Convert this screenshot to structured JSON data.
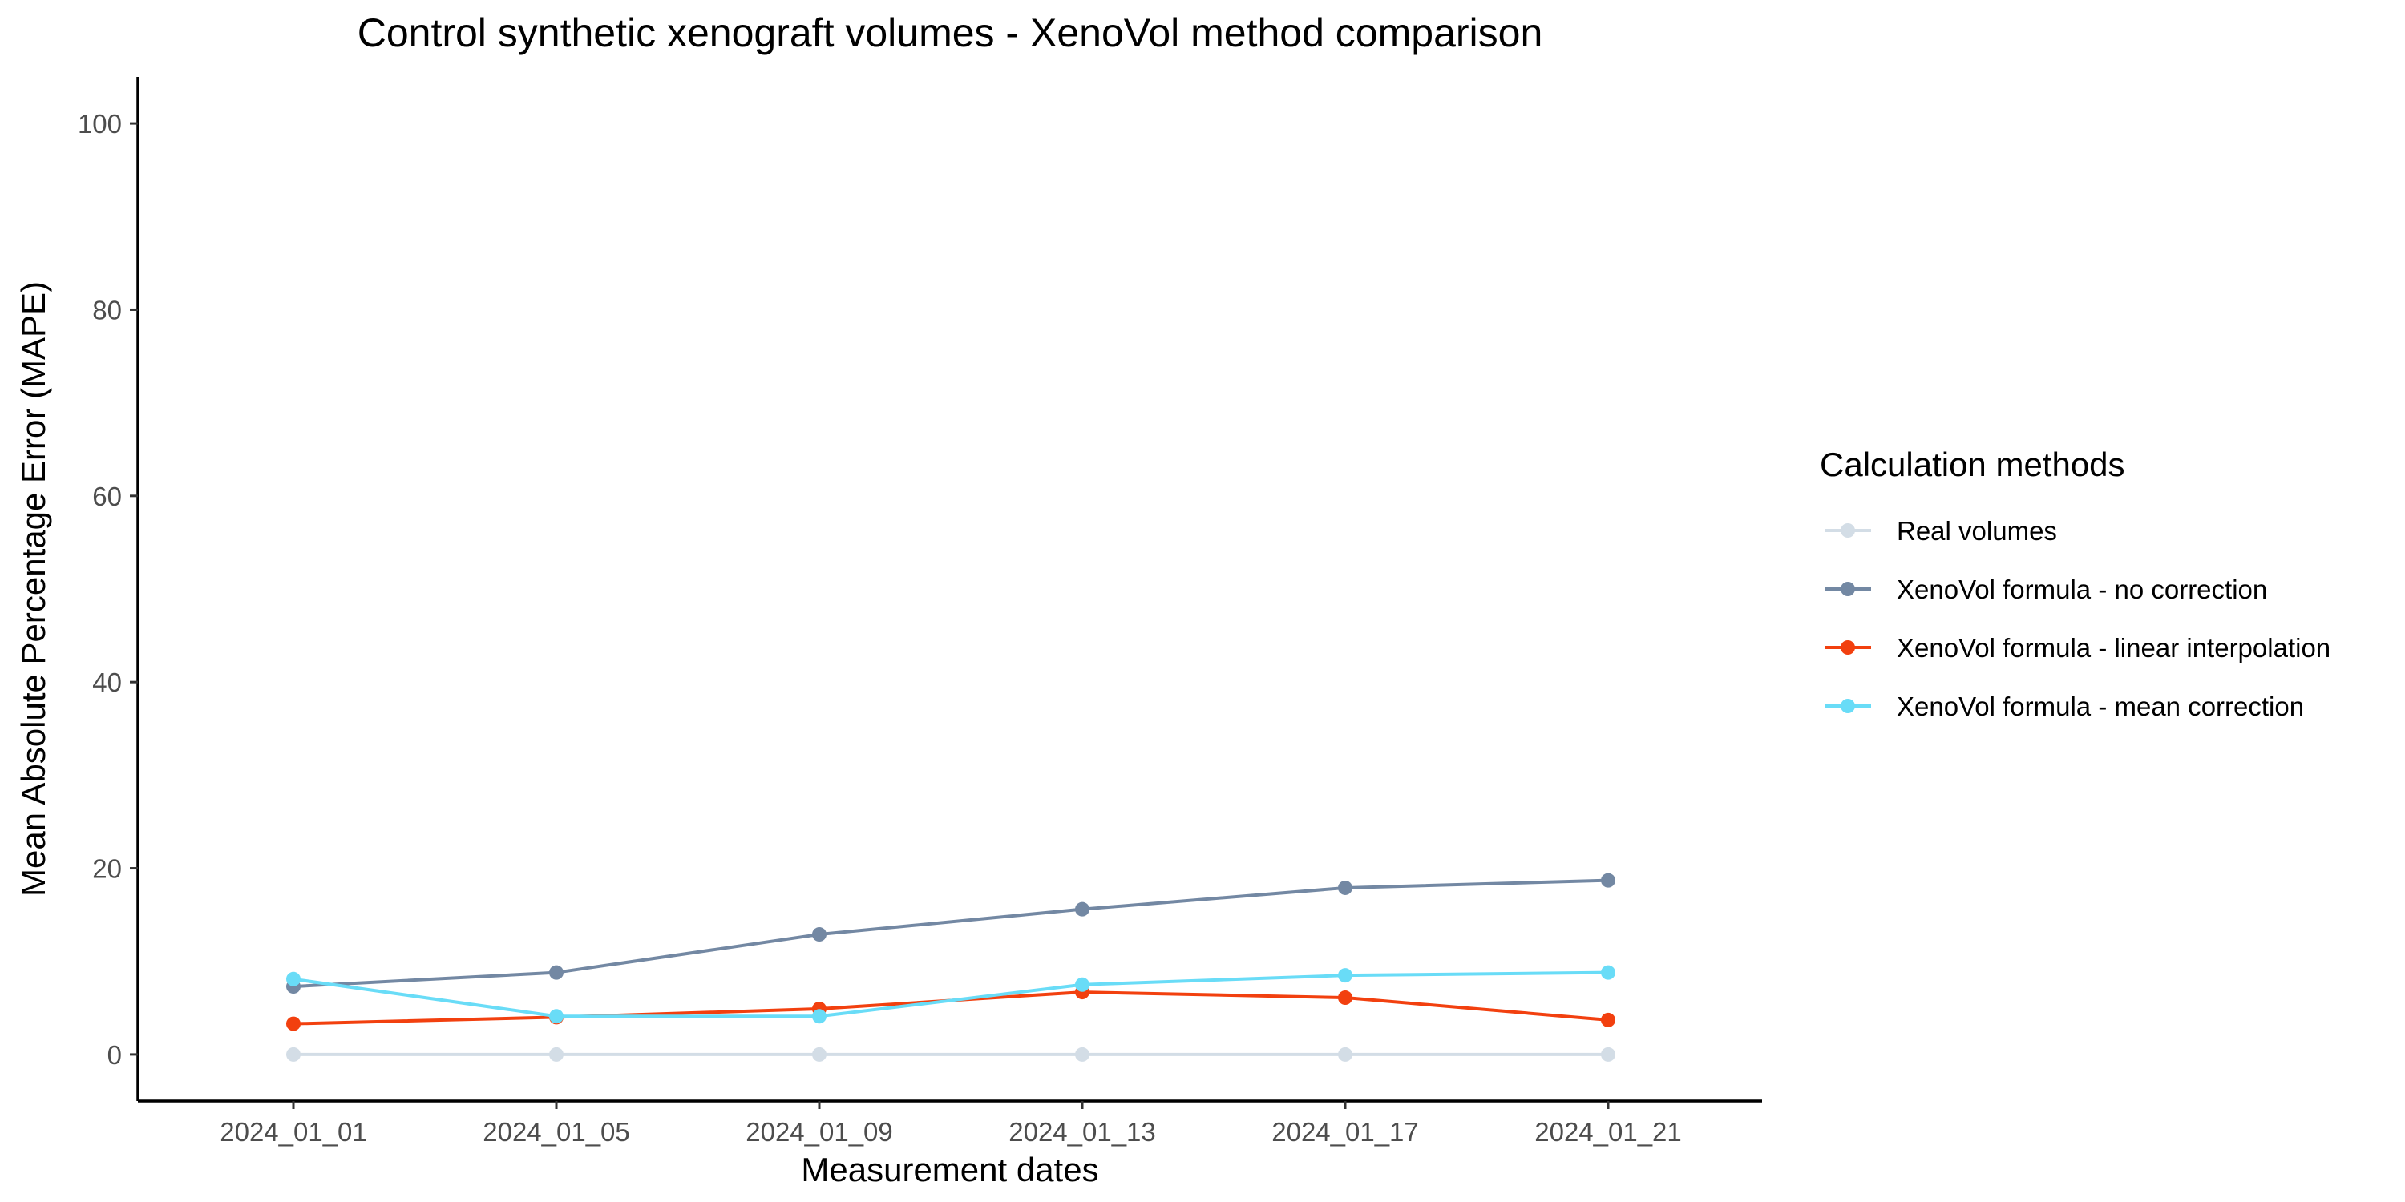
{
  "chart_data": {
    "type": "line",
    "title": "Control synthetic xenograft volumes - XenoVol method comparison",
    "xlabel": "Measurement dates",
    "ylabel": "Mean Absolute Percentage Error (MAPE)",
    "categories": [
      "2024_01_01",
      "2024_01_05",
      "2024_01_09",
      "2024_01_13",
      "2024_01_17",
      "2024_01_21"
    ],
    "ylim": [
      -5,
      105
    ],
    "yticks": [
      0,
      20,
      40,
      60,
      80,
      100
    ],
    "grid": false,
    "legend": {
      "title": "Calculation methods",
      "position": "right"
    },
    "series": [
      {
        "name": "Real volumes",
        "color": "#d3dde6",
        "values": [
          0,
          0,
          0,
          0,
          0,
          0
        ]
      },
      {
        "name": "XenoVol formula - no correction",
        "color": "#7388a3",
        "values": [
          7.3,
          8.8,
          12.9,
          15.6,
          17.9,
          18.7
        ]
      },
      {
        "name": "XenoVol formula - linear interpolation",
        "color": "#f2400f",
        "values": [
          3.3,
          4.0,
          4.9,
          6.7,
          6.1,
          3.7
        ]
      },
      {
        "name": "XenoVol formula - mean correction",
        "color": "#69dcf7",
        "values": [
          8.1,
          4.1,
          4.1,
          7.5,
          8.5,
          8.8
        ]
      }
    ]
  }
}
